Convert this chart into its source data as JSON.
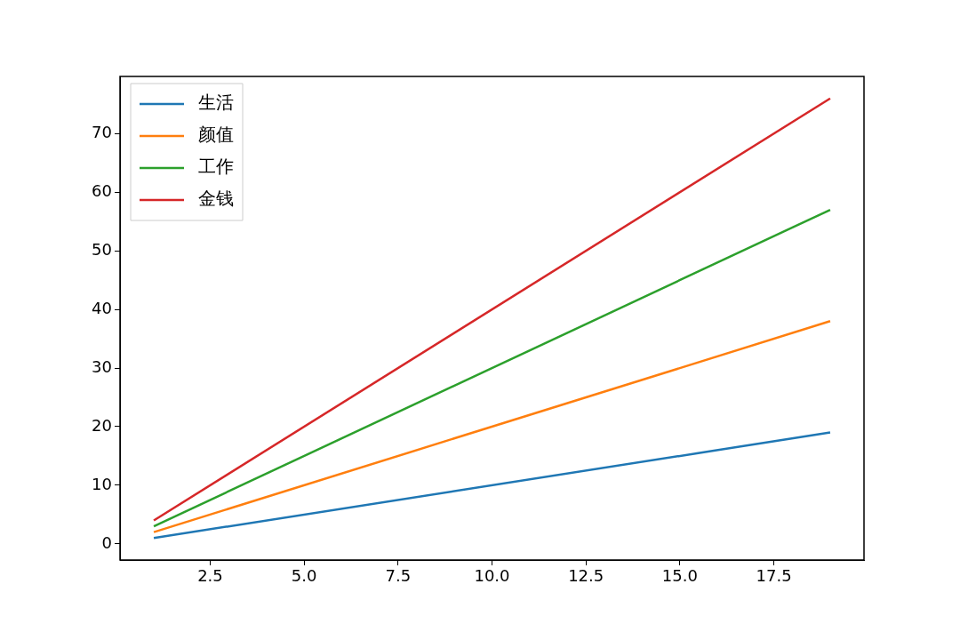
{
  "chart_data": {
    "type": "line",
    "x": [
      1,
      19
    ],
    "series": [
      {
        "name": "生活",
        "color": "#1f77b4",
        "values": [
          1,
          19
        ]
      },
      {
        "name": "颜值",
        "color": "#ff7f0e",
        "values": [
          2,
          38
        ]
      },
      {
        "name": "工作",
        "color": "#2ca02c",
        "values": [
          3,
          57
        ]
      },
      {
        "name": "金钱",
        "color": "#d62728",
        "values": [
          4,
          76
        ]
      }
    ],
    "xlim": [
      0.1,
      19.9
    ],
    "xticks": [
      2.5,
      {
        "value": 5,
        "label": "5.0"
      },
      7.5,
      {
        "value": 10,
        "label": "10.0"
      },
      12.5,
      {
        "value": 15,
        "label": "15.0"
      },
      17.5
    ],
    "ylim": [
      -2.75,
      79.75
    ],
    "yticks": [
      0,
      10,
      20,
      30,
      40,
      50,
      60,
      70
    ],
    "grid": false,
    "legend": "top left",
    "marker": "none",
    "line_style": "solid"
  }
}
